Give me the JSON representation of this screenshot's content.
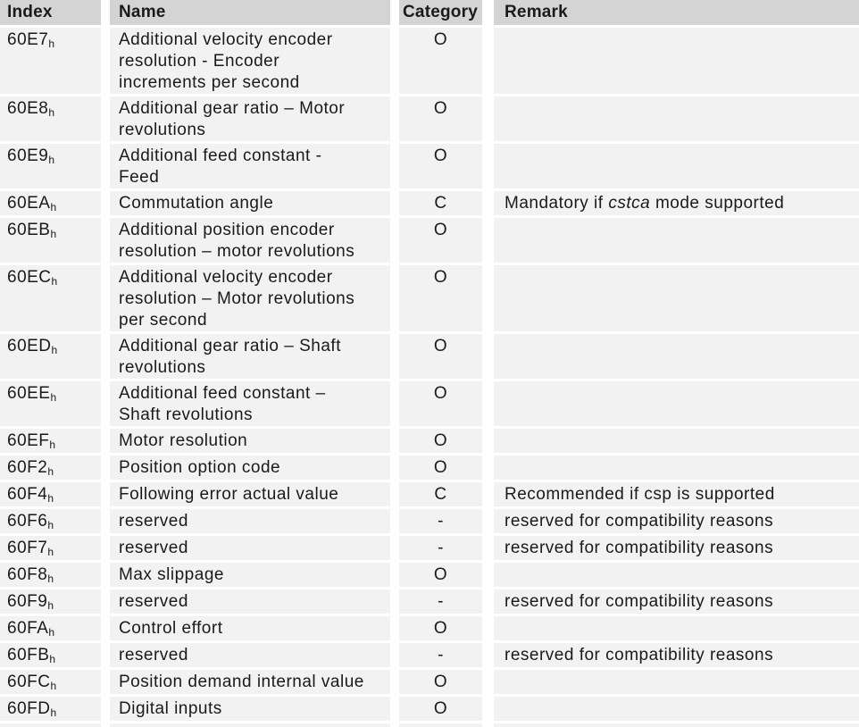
{
  "table": {
    "index_suffix": "h",
    "headers": {
      "index": "Index",
      "name": "Name",
      "category": "Category",
      "remark": "Remark"
    },
    "rows": [
      {
        "index": "60E7",
        "name": "Additional velocity encoder\nresolution - Encoder\nincrements per second",
        "category": "O",
        "remark": ""
      },
      {
        "index": "60E8",
        "name": "Additional gear ratio – Motor\nrevolutions",
        "category": "O",
        "remark": ""
      },
      {
        "index": "60E9",
        "name": "Additional feed constant -\nFeed",
        "category": "O",
        "remark": ""
      },
      {
        "index": "60EA",
        "name": "Commutation angle",
        "category": "C",
        "remark_pre": "Mandatory if ",
        "remark_italic": "cstca",
        "remark_post": " mode supported"
      },
      {
        "index": "60EB",
        "name": "Additional position encoder\nresolution – motor revolutions",
        "category": "O",
        "remark": ""
      },
      {
        "index": "60EC",
        "name": "Additional velocity encoder\nresolution – Motor revolutions\nper second",
        "category": "O",
        "remark": ""
      },
      {
        "index": "60ED",
        "name": "Additional gear ratio – Shaft\nrevolutions",
        "category": "O",
        "remark": ""
      },
      {
        "index": "60EE",
        "name": "Additional feed constant –\nShaft revolutions",
        "category": "O",
        "remark": ""
      },
      {
        "index": "60EF",
        "name": "Motor resolution",
        "category": "O",
        "remark": ""
      },
      {
        "index": "60F2",
        "name": "Position option code",
        "category": "O",
        "remark": ""
      },
      {
        "index": "60F4",
        "name": "Following error actual value",
        "category": "C",
        "remark": "Recommended if csp is supported"
      },
      {
        "index": "60F6",
        "name": "reserved",
        "category": "-",
        "remark": "reserved for compatibility reasons"
      },
      {
        "index": "60F7",
        "name": "reserved",
        "category": "-",
        "remark": "reserved for compatibility reasons"
      },
      {
        "index": "60F8",
        "name": "Max slippage",
        "category": "O",
        "remark": ""
      },
      {
        "index": "60F9",
        "name": "reserved",
        "category": "-",
        "remark": "reserved for compatibility reasons"
      },
      {
        "index": "60FA",
        "name": "Control effort",
        "category": "O",
        "remark": ""
      },
      {
        "index": "60FB",
        "name": "reserved",
        "category": "-",
        "remark": "reserved for compatibility reasons"
      },
      {
        "index": "60FC",
        "name": "Position demand internal value",
        "category": "O",
        "remark": ""
      },
      {
        "index": "60FD",
        "name": "Digital inputs",
        "category": "O",
        "remark": ""
      }
    ]
  },
  "colors": {
    "header_bg": "#d4d4d4",
    "row_bg": "#f2f2f2",
    "text": "#1a1a1a",
    "gutter": "#ffffff"
  }
}
